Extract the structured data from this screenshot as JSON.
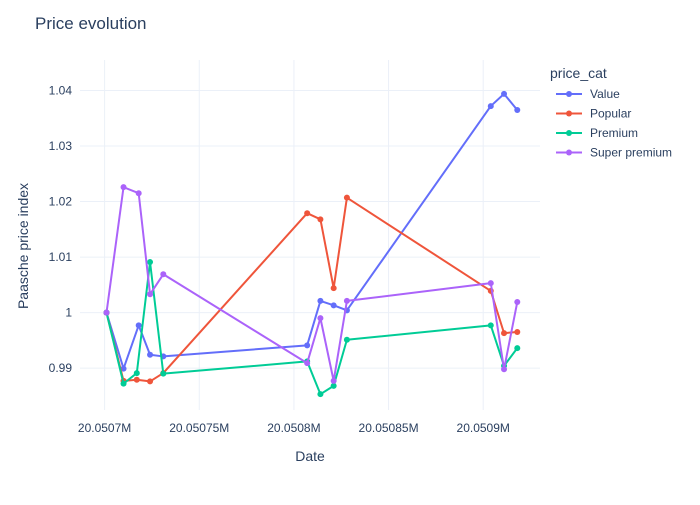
{
  "chart_data": {
    "type": "line",
    "title": "Price evolution",
    "xlabel": "Date",
    "ylabel": "Paasche price index",
    "xlim": [
      20050687,
      20050930
    ],
    "ylim": [
      0.98245,
      1.0455
    ],
    "x_ticks": [
      20050700,
      20050750,
      20050800,
      20050850,
      20050900
    ],
    "x_tick_labels": [
      "20.0507M",
      "20.05075M",
      "20.0508M",
      "20.05085M",
      "20.0509M"
    ],
    "y_ticks": [
      0.99,
      1.0,
      1.01,
      1.02,
      1.03,
      1.04
    ],
    "y_tick_labels": [
      "0.99",
      "1",
      "1.01",
      "1.02",
      "1.03",
      "1.04"
    ],
    "grid": true,
    "legend_title": "price_cat",
    "legend_position": "top-right",
    "series": [
      {
        "name": "Value",
        "color": "#636efa",
        "x": [
          20050701,
          20050710,
          20050718,
          20050724,
          20050731,
          20050807,
          20050814,
          20050821,
          20050828,
          20050904,
          20050911,
          20050918
        ],
        "y": [
          1.0,
          0.9899,
          0.9977,
          0.9924,
          0.9921,
          0.9941,
          1.0021,
          1.0013,
          1.0004,
          1.0372,
          1.0394,
          1.0365
        ]
      },
      {
        "name": "Popular",
        "color": "#EF553B",
        "x": [
          20050701,
          20050710,
          20050717,
          20050724,
          20050731,
          20050807,
          20050814,
          20050821,
          20050828,
          20050904,
          20050911,
          20050918
        ],
        "y": [
          1.0,
          0.9877,
          0.9879,
          0.9876,
          0.9891,
          1.0179,
          1.0168,
          1.0044,
          1.0207,
          1.0039,
          0.9963,
          0.9965
        ]
      },
      {
        "name": "Premium",
        "color": "#00cc96",
        "x": [
          20050701,
          20050710,
          20050717,
          20050724,
          20050731,
          20050807,
          20050814,
          20050821,
          20050828,
          20050904,
          20050911,
          20050918
        ],
        "y": [
          1.0,
          0.9872,
          0.9891,
          1.0091,
          0.989,
          0.9912,
          0.9853,
          0.9868,
          0.9951,
          0.9977,
          0.9904,
          0.9936
        ]
      },
      {
        "name": "Super premium",
        "color": "#ab63fa",
        "x": [
          20050701,
          20050710,
          20050718,
          20050724,
          20050731,
          20050807,
          20050814,
          20050821,
          20050828,
          20050904,
          20050911,
          20050918
        ],
        "y": [
          1.0,
          1.0226,
          1.0215,
          1.0033,
          1.0069,
          0.9909,
          0.999,
          0.9877,
          1.0021,
          1.0053,
          0.9898,
          1.0019
        ]
      }
    ]
  }
}
